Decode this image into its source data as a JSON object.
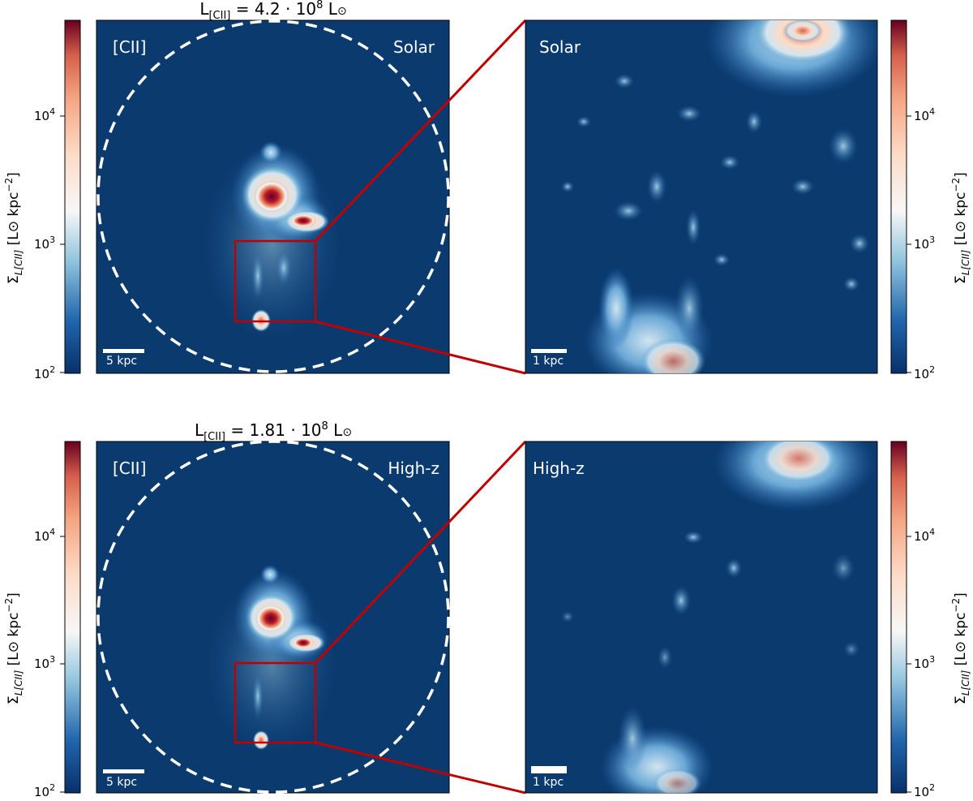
{
  "rows": [
    {
      "title_pre": "L",
      "title_sub": "[CII]",
      "title_val": " = 4.2 · 10",
      "title_exp": "8",
      "title_unit": " L",
      "left_label": "[CII]",
      "left_model": "Solar",
      "zoom_model": "Solar",
      "left_scale": "5 kpc",
      "zoom_scale": "1 kpc"
    },
    {
      "title_pre": "L",
      "title_sub": "[CII]",
      "title_val": " = 1.81 · 10",
      "title_exp": "8",
      "title_unit": " L",
      "left_label": "[CII]",
      "left_model": "High-z",
      "zoom_model": "High-z",
      "left_scale": "5 kpc",
      "zoom_scale": "1 kpc"
    }
  ],
  "colorbar": {
    "ticks": [
      {
        "base": "10",
        "exp": "4"
      },
      {
        "base": "10",
        "exp": "3"
      },
      {
        "base": "10",
        "exp": "2"
      }
    ],
    "label_sigma": "Σ",
    "label_sub": "L[CII]",
    "label_rest": " [L",
    "label_sun": "⊙",
    "label_unit": " kpc",
    "label_exp": "−2",
    "label_close": "]",
    "colormap": "RdBu_r",
    "scale": "log",
    "range": [
      100,
      50000
    ]
  },
  "colors": {
    "background": "#0b3a6e",
    "zoom_box": "#c00000",
    "circle": "#ffffff"
  }
}
